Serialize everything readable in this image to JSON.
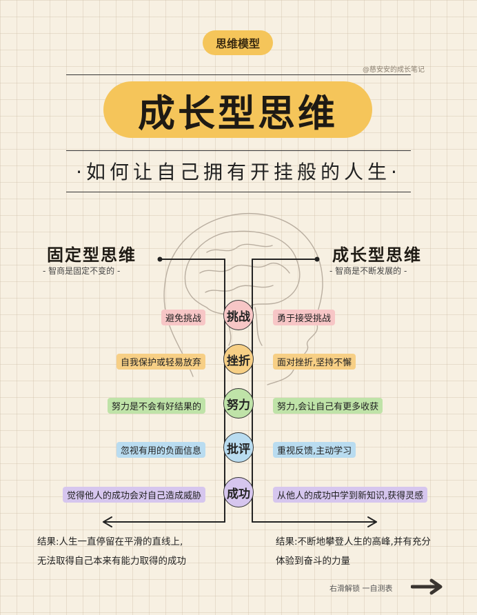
{
  "header": {
    "tag": "思维模型",
    "watermark": "@慈安安的成长笔记",
    "title": "成长型思维",
    "subtitle": "·如何让自己拥有开挂般的人生·"
  },
  "left": {
    "title": "固定型思维",
    "subtitle": "- 智商是固定不变的 -"
  },
  "right": {
    "title": "成长型思维",
    "subtitle": "- 智商是不断发展的 -"
  },
  "rows": [
    {
      "center": "挑战",
      "left": "避免挑战",
      "right": "勇于接受挑战",
      "color": "#f7c6c6"
    },
    {
      "center": "挫折",
      "left": "自我保护或轻易放弃",
      "right": "面对挫折,坚持不懈",
      "color": "#f7cf85"
    },
    {
      "center": "努力",
      "left": "努力是不会有好结果的",
      "right": "努力,会让自己有更多收获",
      "color": "#bfe3a8"
    },
    {
      "center": "批评",
      "left": "忽视有用的负面信息",
      "right": "重视反馈,主动学习",
      "color": "#b9dcf0"
    },
    {
      "center": "成功",
      "left": "觉得他人的成功会对自己造成威胁",
      "right": "从他人的成功中学到新知识,获得灵感",
      "color": "#d6c6ee"
    }
  ],
  "results": {
    "left": [
      "结果:人生一直停留在平滑的直线上,",
      "无法取得自己本来有能力取得的成功"
    ],
    "right": [
      "结果:不断地攀登人生的高峰,并有充分",
      "体验到奋斗的力量"
    ]
  },
  "footer": {
    "text": "右滑解锁 一自测表"
  },
  "icons": {
    "arrow": "arrow-right-icon",
    "brain": "brain-head-icon"
  }
}
